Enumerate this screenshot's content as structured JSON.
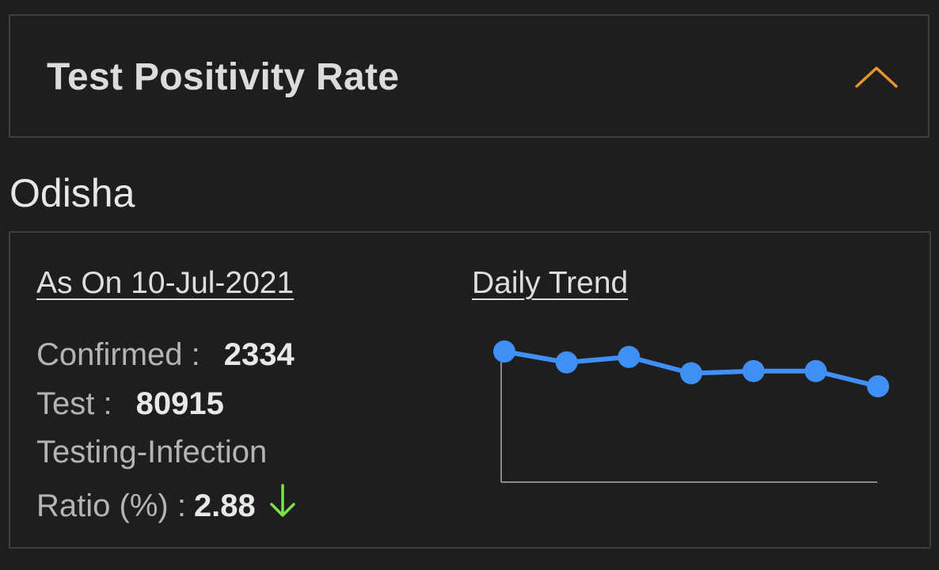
{
  "header": {
    "title": "Test Positivity Rate",
    "toggle_icon": "chevron-up-icon",
    "accent_color": "#e8952f"
  },
  "state": {
    "name": "Odisha"
  },
  "summary": {
    "as_on_label": "As On 10-Jul-2021",
    "daily_trend_label": "Daily Trend",
    "confirmed_label": "Confirmed :",
    "confirmed_value": "2334",
    "test_label": "Test :",
    "test_value": "80915",
    "ratio_label_line1": "Testing-Infection",
    "ratio_label_line2": "Ratio (%) :",
    "ratio_value": "2.88",
    "trend_icon": "arrow-down-icon",
    "trend_color": "#7ee04a"
  },
  "chart_data": {
    "type": "line",
    "title": "",
    "xlabel": "",
    "ylabel": "",
    "x": [
      1,
      2,
      3,
      4,
      5,
      6,
      7
    ],
    "values": [
      3.2,
      3.1,
      3.15,
      3.0,
      3.02,
      3.02,
      2.88
    ],
    "ylim": [
      2.0,
      3.2
    ],
    "color": "#3f8ff5",
    "grid": false,
    "legend": "none"
  }
}
